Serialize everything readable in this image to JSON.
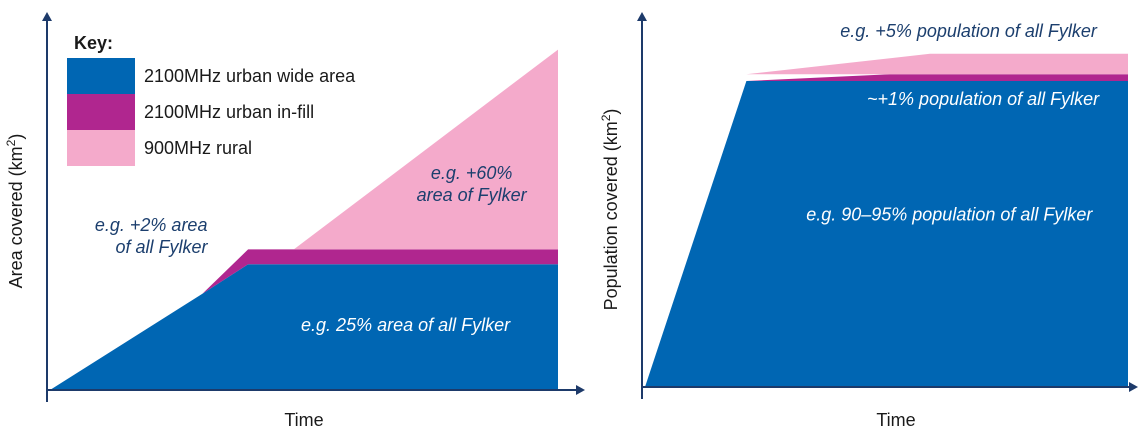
{
  "chart_data": [
    {
      "type": "area",
      "title": "",
      "xlabel": "Time",
      "ylabel": "Area covered (km²)",
      "ylabel_parts": {
        "main": "Area covered (km",
        "sup": "2",
        "close": ")"
      },
      "legend": {
        "title": "Key:",
        "placement": "top-left",
        "entries": [
          {
            "label": "2100MHz  urban wide area",
            "color": "#0066b3"
          },
          {
            "label": "2100MHz  urban in-fill",
            "color": "#b0268f"
          },
          {
            "label": "900MHz  rural",
            "color": "#f4aacb"
          }
        ]
      },
      "xlim": [
        0,
        100
      ],
      "ylim": [
        0,
        100
      ],
      "series": [
        {
          "name": "2100MHz  urban wide area",
          "color": "#0066b3",
          "points": [
            [
              0,
              0
            ],
            [
              30,
              26
            ],
            [
              39,
              34
            ],
            [
              100,
              34
            ],
            [
              100,
              0
            ]
          ]
        },
        {
          "name": "2100MHz  urban in-fill",
          "color": "#b0268f",
          "points": [
            [
              30,
              26
            ],
            [
              39,
              38
            ],
            [
              100,
              38
            ],
            [
              100,
              34
            ],
            [
              39,
              34
            ]
          ]
        },
        {
          "name": "900MHz  rural",
          "color": "#f4aacb",
          "points": [
            [
              48,
              38
            ],
            [
              100,
              92
            ],
            [
              100,
              38
            ]
          ]
        }
      ],
      "annotations": [
        {
          "text_lines": [
            "e.g. +2% area",
            "of all Fylker"
          ],
          "anchor": "end",
          "x": 31,
          "y": 43,
          "color": "#1c3f6e"
        },
        {
          "text_lines": [
            "e.g. +60%",
            "area of Fylker"
          ],
          "anchor": "middle",
          "x": 83,
          "y": 57,
          "color": "#1c3f6e"
        },
        {
          "text_lines": [
            "e.g. 25% area of all Fylker"
          ],
          "anchor": "middle",
          "x": 70,
          "y": 16,
          "color": "#ffffff"
        }
      ]
    },
    {
      "type": "area",
      "title": "",
      "xlabel": "Time",
      "ylabel": "Population  covered (km²)",
      "ylabel_parts": {
        "main": "Population  covered (km",
        "sup": "2",
        "close": ")"
      },
      "xlim": [
        0,
        100
      ],
      "ylim": [
        0,
        100
      ],
      "series": [
        {
          "color": "#0066b3",
          "points": [
            [
              0,
              0
            ],
            [
              21,
              90
            ],
            [
              100,
              90
            ],
            [
              100,
              0
            ]
          ]
        },
        {
          "color": "#b0268f",
          "points": [
            [
              21,
              90
            ],
            [
              51,
              92
            ],
            [
              100,
              92
            ],
            [
              100,
              90
            ]
          ]
        },
        {
          "color": "#f4aacb",
          "points": [
            [
              21,
              92
            ],
            [
              59,
              98
            ],
            [
              100,
              98
            ],
            [
              100,
              92
            ]
          ]
        }
      ],
      "annotations": [
        {
          "text_lines": [
            "e.g. +5% population  of all Fylker"
          ],
          "anchor": "middle",
          "x": 67,
          "y": 103,
          "color": "#1c3f6e"
        },
        {
          "text_lines": [
            "~+1% population  of all Fylker"
          ],
          "anchor": "middle",
          "x": 70,
          "y": 83,
          "color": "#ffffff"
        },
        {
          "text_lines": [
            "e.g. 90–95% population  of all Fylker"
          ],
          "anchor": "middle",
          "x": 63,
          "y": 49,
          "color": "#ffffff"
        }
      ]
    }
  ]
}
